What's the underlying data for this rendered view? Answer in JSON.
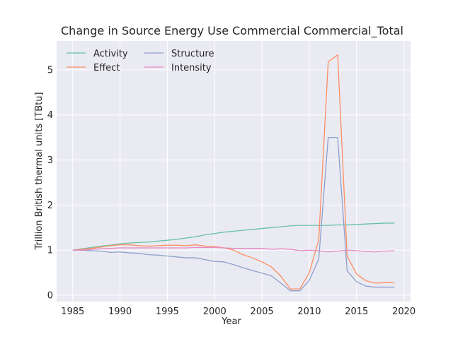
{
  "chart_data": {
    "type": "line",
    "title": "Change in Source Energy Use Commercial Commercial_Total",
    "xlabel": "Year",
    "ylabel": "Trillion British thermal units [TBtu]",
    "xlim": [
      1983.3,
      2020.7
    ],
    "ylim": [
      -0.14,
      5.64
    ],
    "xticks": [
      1985,
      1990,
      1995,
      2000,
      2005,
      2010,
      2015,
      2020
    ],
    "yticks": [
      0,
      1,
      2,
      3,
      4,
      5
    ],
    "grid": true,
    "legend_position": "top-left",
    "x": [
      1985,
      1986,
      1987,
      1988,
      1989,
      1990,
      1991,
      1992,
      1993,
      1994,
      1995,
      1996,
      1997,
      1998,
      1999,
      2000,
      2001,
      2002,
      2003,
      2004,
      2005,
      2006,
      2007,
      2008,
      2009,
      2010,
      2011,
      2012,
      2013,
      2014,
      2015,
      2016,
      2017,
      2018,
      2019
    ],
    "series": [
      {
        "name": "Activity",
        "color": "#66c2a5",
        "values": [
          1.0,
          1.03,
          1.06,
          1.09,
          1.11,
          1.14,
          1.16,
          1.17,
          1.18,
          1.2,
          1.22,
          1.24,
          1.27,
          1.3,
          1.34,
          1.37,
          1.4,
          1.42,
          1.44,
          1.46,
          1.48,
          1.5,
          1.52,
          1.54,
          1.55,
          1.55,
          1.55,
          1.55,
          1.56,
          1.56,
          1.57,
          1.58,
          1.59,
          1.6,
          1.6
        ]
      },
      {
        "name": "Effect",
        "color": "#fc8d62",
        "values": [
          1.0,
          1.02,
          1.04,
          1.07,
          1.1,
          1.12,
          1.12,
          1.1,
          1.09,
          1.1,
          1.11,
          1.11,
          1.1,
          1.12,
          1.09,
          1.08,
          1.05,
          1.0,
          0.9,
          0.83,
          0.74,
          0.63,
          0.42,
          0.14,
          0.14,
          0.5,
          1.23,
          5.18,
          5.33,
          0.87,
          0.47,
          0.32,
          0.27,
          0.28,
          0.28
        ]
      },
      {
        "name": "Structure",
        "color": "#8da0cb",
        "values": [
          1.0,
          1.0,
          0.99,
          0.98,
          0.95,
          0.96,
          0.94,
          0.93,
          0.9,
          0.89,
          0.87,
          0.85,
          0.83,
          0.83,
          0.79,
          0.75,
          0.74,
          0.68,
          0.61,
          0.55,
          0.49,
          0.43,
          0.27,
          0.1,
          0.1,
          0.33,
          0.8,
          3.5,
          3.5,
          0.54,
          0.3,
          0.2,
          0.18,
          0.18,
          0.18
        ]
      },
      {
        "name": "Intensity",
        "color": "#e78ac3",
        "values": [
          1.0,
          1.0,
          1.02,
          1.03,
          1.04,
          1.05,
          1.05,
          1.05,
          1.05,
          1.05,
          1.05,
          1.05,
          1.05,
          1.06,
          1.06,
          1.06,
          1.05,
          1.04,
          1.04,
          1.04,
          1.04,
          1.02,
          1.03,
          1.02,
          0.99,
          1.0,
          0.99,
          0.96,
          0.98,
          1.0,
          0.99,
          0.97,
          0.96,
          0.98,
          0.99
        ]
      }
    ]
  },
  "style": {
    "plot_background": "#eaeaf2",
    "grid_color": "#ffffff",
    "text_color": "#262626"
  }
}
